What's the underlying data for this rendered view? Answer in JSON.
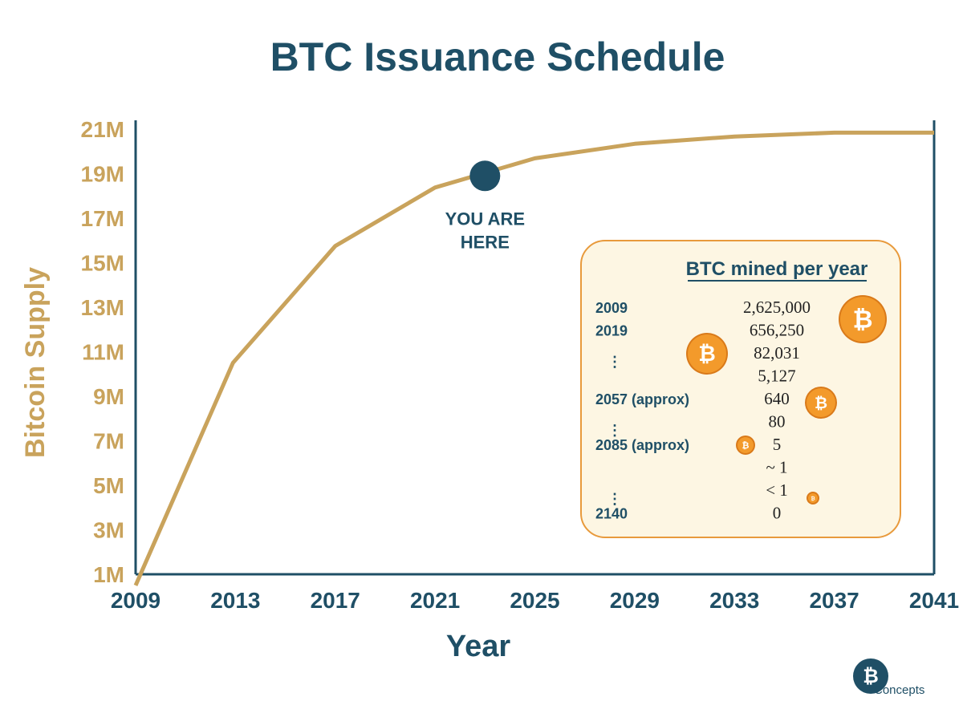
{
  "chart_data": {
    "type": "line",
    "title": "BTC Issuance Schedule",
    "xlabel": "Year",
    "ylabel": "Bitcoin Supply",
    "x_ticks": [
      "2009",
      "2013",
      "2017",
      "2021",
      "2025",
      "2029",
      "2033",
      "2037",
      "2041"
    ],
    "y_ticks": [
      "1M",
      "3M",
      "5M",
      "7M",
      "9M",
      "11M",
      "13M",
      "15M",
      "17M",
      "19M",
      "21M"
    ],
    "xlim": [
      2009,
      2041
    ],
    "ylim": [
      1,
      21
    ],
    "grid": false,
    "series": [
      {
        "color": "#c9a35c",
        "points": [
          {
            "x": 2009,
            "y": 0.5
          },
          {
            "x": 2012.9,
            "y": 10.5
          },
          {
            "x": 2017,
            "y": 15.75
          },
          {
            "x": 2021,
            "y": 18.375
          },
          {
            "x": 2025,
            "y": 19.6875
          },
          {
            "x": 2029,
            "y": 20.34
          },
          {
            "x": 2033,
            "y": 20.67
          },
          {
            "x": 2037,
            "y": 20.84
          },
          {
            "x": 2041,
            "y": 20.84
          }
        ]
      }
    ],
    "annotation": {
      "label_line1": "YOU ARE",
      "label_line2": "HERE",
      "x": 2023,
      "y": 18.9,
      "color": "#1f4f66"
    },
    "inset_table": {
      "title": "BTC mined per year",
      "rows": [
        {
          "year": "2009",
          "value": "2,625,000"
        },
        {
          "year": "2019",
          "value": "656,250"
        },
        {
          "year": "⋮",
          "value": "82,031"
        },
        {
          "year": "",
          "value": "5,127"
        },
        {
          "year": "2057 (approx)",
          "value": "640"
        },
        {
          "year": "⋮",
          "value": "80"
        },
        {
          "year": "2085 (approx)",
          "value": "5"
        },
        {
          "year": "",
          "value": "~ 1"
        },
        {
          "year": "⋮",
          "value": "< 1"
        },
        {
          "year": "2140",
          "value": "0"
        }
      ],
      "background": "#fdf6e3",
      "border": "#e89a3c"
    }
  },
  "colors": {
    "accent_line": "#c9a35c",
    "dark_blue": "#1f4f66",
    "coin_orange": "#f39a2b"
  },
  "logo": {
    "icon": "bitcoin-icon",
    "text": "Concepts"
  }
}
